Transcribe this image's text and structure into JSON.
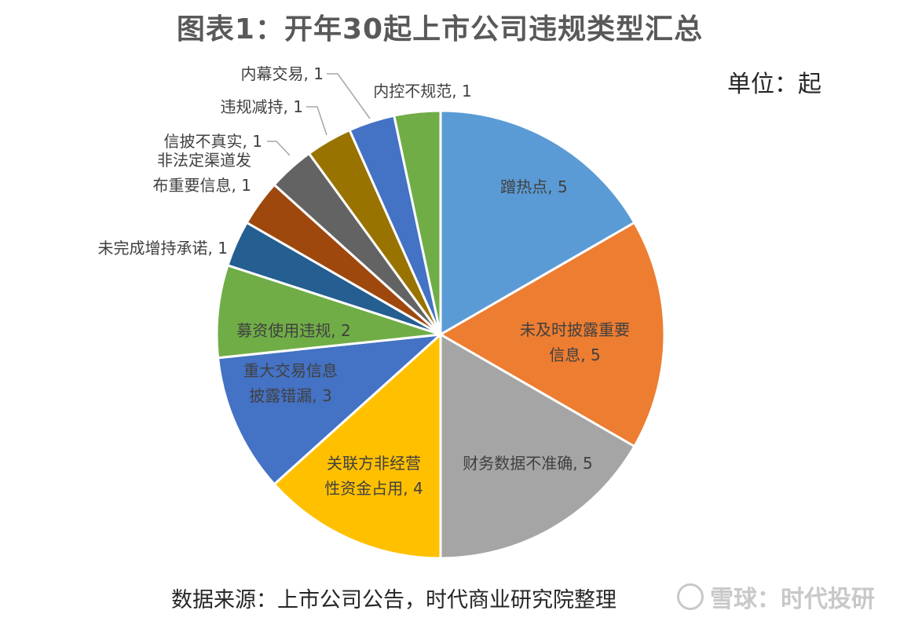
{
  "title": "图表1：开年30起上市公司违规类型汇总",
  "unit": "单位：起",
  "source": "数据来源：上市公司公告，时代商业研究院整理",
  "watermark": "雪球：时代投研",
  "chart_data": {
    "type": "pie",
    "title": "图表1：开年30起上市公司违规类型汇总",
    "unit": "单位：起",
    "slices": [
      {
        "label": "蹭热点",
        "value": 5,
        "color": "#5B9BD5"
      },
      {
        "label": "未及时披露重要信息",
        "value": 5,
        "color": "#ED7D31"
      },
      {
        "label": "财务数据不准确",
        "value": 5,
        "color": "#A5A5A5"
      },
      {
        "label": "关联方非经营性资金占用",
        "value": 4,
        "color": "#FFC000"
      },
      {
        "label": "重大交易信息披露错漏",
        "value": 3,
        "color": "#4472C4"
      },
      {
        "label": "募资使用违规",
        "value": 2,
        "color": "#70AD47"
      },
      {
        "label": "未完成增持承诺",
        "value": 1,
        "color": "#255E91"
      },
      {
        "label": "非法定渠道发布重要信息",
        "value": 1,
        "color": "#9E480E"
      },
      {
        "label": "信披不真实",
        "value": 1,
        "color": "#636363"
      },
      {
        "label": "违规减持",
        "value": 1,
        "color": "#997300"
      },
      {
        "label": "内幕交易",
        "value": 1,
        "color": "#4472C4"
      },
      {
        "label": "内控不规范",
        "value": 1,
        "color": "#70AD47"
      }
    ]
  }
}
